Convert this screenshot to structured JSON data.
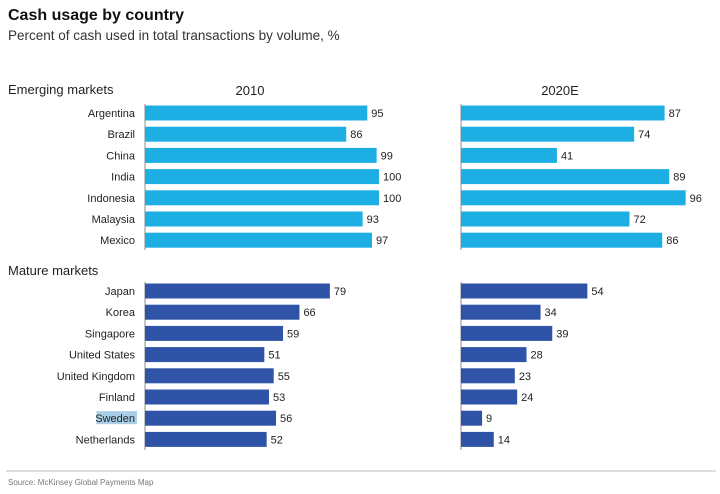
{
  "colors": {
    "emerging": "#1DAEE3",
    "mature": "#2F53A6",
    "axis": "#8C8C8C",
    "rule": "#BDBDBD",
    "highlight": "#A9CFE8"
  },
  "highlighted_category": "Sweden",
  "chart_data": {
    "type": "bar",
    "orientation": "horizontal",
    "title": "Cash usage by country",
    "subtitle": "Percent of cash used in total transactions by volume, %",
    "source": "Source: McKinsey Global Payments Map",
    "xlim": [
      0,
      100
    ],
    "panels": [
      "2010",
      "2020E"
    ],
    "groups": [
      {
        "name": "Emerging markets",
        "categories": [
          "Argentina",
          "Brazil",
          "China",
          "India",
          "Indonesia",
          "Malaysia",
          "Mexico"
        ],
        "series": [
          {
            "name": "2010",
            "values": [
              95,
              86,
              99,
              100,
              100,
              93,
              97
            ]
          },
          {
            "name": "2020E",
            "values": [
              87,
              74,
              41,
              89,
              96,
              72,
              86
            ]
          }
        ]
      },
      {
        "name": "Mature markets",
        "categories": [
          "Japan",
          "Korea",
          "Singapore",
          "United States",
          "United Kingdom",
          "Finland",
          "Sweden",
          "Netherlands"
        ],
        "series": [
          {
            "name": "2010",
            "values": [
              79,
              66,
              59,
              51,
              55,
              53,
              56,
              52
            ]
          },
          {
            "name": "2020E",
            "values": [
              54,
              34,
              39,
              28,
              23,
              24,
              9,
              14
            ]
          }
        ]
      }
    ]
  }
}
